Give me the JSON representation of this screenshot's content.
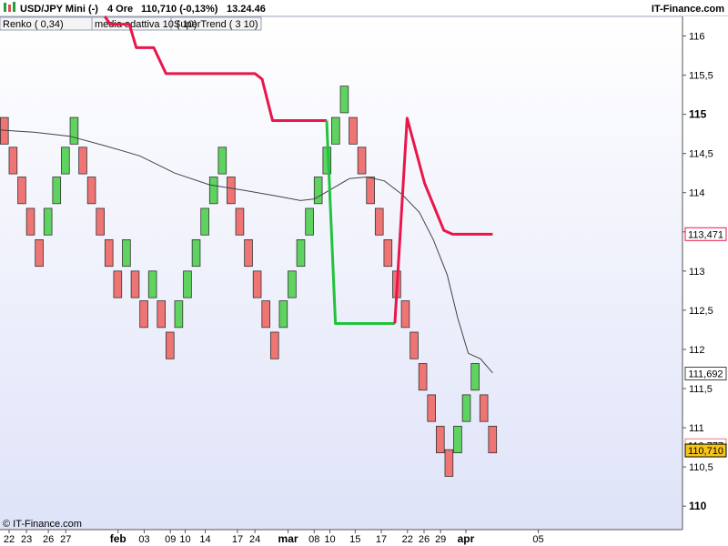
{
  "header": {
    "symbol": "USD/JPY Mini (-)",
    "timeframe": "4 Ore",
    "quote": "110,710 (-0,13%)",
    "time": "13.24.46",
    "brand": "IT-Finance.com"
  },
  "legend": [
    {
      "label": "Renko ( 0,34)",
      "color": "#e06060"
    },
    {
      "label": "media adattiva 10 ( 10)",
      "color": "#333333"
    },
    {
      "label": "SuperTrend ( 3 10)",
      "color": "#e8174a"
    }
  ],
  "copyright": "© IT-Finance.com",
  "colors": {
    "up": "#5fd35f",
    "down": "#ef7474",
    "supertrend_bear": "#e8174a",
    "supertrend_bull": "#22c33c",
    "ama": "#444444",
    "bg_bottom": "#dfe3f8"
  },
  "chart_data": {
    "type": "renko",
    "brick_size": 0.34,
    "ylim": [
      109.7,
      116.25
    ],
    "y_ticks": [
      {
        "value": 116,
        "label": "116",
        "bold": false
      },
      {
        "value": 115.5,
        "label": "115,5",
        "bold": false
      },
      {
        "value": 115,
        "label": "115",
        "bold": true
      },
      {
        "value": 114.5,
        "label": "114,5",
        "bold": false
      },
      {
        "value": 114,
        "label": "114",
        "bold": false
      },
      {
        "value": 113.5,
        "label": "113,5",
        "bold": false
      },
      {
        "value": 113,
        "label": "113",
        "bold": false
      },
      {
        "value": 112.5,
        "label": "112,5",
        "bold": false
      },
      {
        "value": 112,
        "label": "112",
        "bold": false
      },
      {
        "value": 111.5,
        "label": "111,5",
        "bold": false
      },
      {
        "value": 111,
        "label": "111",
        "bold": false
      },
      {
        "value": 110.5,
        "label": "110,5",
        "bold": false
      },
      {
        "value": 110,
        "label": "110",
        "bold": true
      }
    ],
    "x_ticks": [
      {
        "i": 1,
        "label": "22",
        "bold": false
      },
      {
        "i": 3,
        "label": "23",
        "bold": false
      },
      {
        "i": 5.5,
        "label": "26",
        "bold": false
      },
      {
        "i": 7.5,
        "label": "27",
        "bold": false
      },
      {
        "i": 13.5,
        "label": "feb",
        "bold": true
      },
      {
        "i": 16.5,
        "label": "03",
        "bold": false
      },
      {
        "i": 19.5,
        "label": "09",
        "bold": false
      },
      {
        "i": 21.2,
        "label": "10",
        "bold": false
      },
      {
        "i": 23.5,
        "label": "14",
        "bold": false
      },
      {
        "i": 27.2,
        "label": "17",
        "bold": false
      },
      {
        "i": 29.2,
        "label": "24",
        "bold": false
      },
      {
        "i": 33,
        "label": "mar",
        "bold": true
      },
      {
        "i": 36,
        "label": "08",
        "bold": false
      },
      {
        "i": 37.8,
        "label": "10",
        "bold": false
      },
      {
        "i": 40.7,
        "label": "15",
        "bold": false
      },
      {
        "i": 43.7,
        "label": "17",
        "bold": false
      },
      {
        "i": 46.7,
        "label": "22",
        "bold": false
      },
      {
        "i": 48.6,
        "label": "26",
        "bold": false
      },
      {
        "i": 50.5,
        "label": "29",
        "bold": false
      },
      {
        "i": 53.4,
        "label": "apr",
        "bold": true
      },
      {
        "i": 61.7,
        "label": "05",
        "bold": false
      }
    ],
    "bricks": [
      {
        "low": 114.62,
        "dir": "down"
      },
      {
        "low": 114.24,
        "dir": "down"
      },
      {
        "low": 113.86,
        "dir": "down"
      },
      {
        "low": 113.46,
        "dir": "down"
      },
      {
        "low": 113.06,
        "dir": "down"
      },
      {
        "low": 113.46,
        "dir": "up"
      },
      {
        "low": 113.86,
        "dir": "up"
      },
      {
        "low": 114.24,
        "dir": "up"
      },
      {
        "low": 114.62,
        "dir": "up"
      },
      {
        "low": 114.24,
        "dir": "down"
      },
      {
        "low": 113.86,
        "dir": "down"
      },
      {
        "low": 113.46,
        "dir": "down"
      },
      {
        "low": 113.06,
        "dir": "down"
      },
      {
        "low": 112.66,
        "dir": "down"
      },
      {
        "low": 113.06,
        "dir": "up"
      },
      {
        "low": 112.66,
        "dir": "down"
      },
      {
        "low": 112.28,
        "dir": "down"
      },
      {
        "low": 112.66,
        "dir": "up"
      },
      {
        "low": 112.28,
        "dir": "down"
      },
      {
        "low": 111.88,
        "dir": "down"
      },
      {
        "low": 112.28,
        "dir": "up"
      },
      {
        "low": 112.66,
        "dir": "up"
      },
      {
        "low": 113.06,
        "dir": "up"
      },
      {
        "low": 113.46,
        "dir": "up"
      },
      {
        "low": 113.86,
        "dir": "up"
      },
      {
        "low": 114.24,
        "dir": "up"
      },
      {
        "low": 113.86,
        "dir": "down"
      },
      {
        "low": 113.46,
        "dir": "down"
      },
      {
        "low": 113.06,
        "dir": "down"
      },
      {
        "low": 112.66,
        "dir": "down"
      },
      {
        "low": 112.28,
        "dir": "down"
      },
      {
        "low": 111.88,
        "dir": "down"
      },
      {
        "low": 112.28,
        "dir": "up"
      },
      {
        "low": 112.66,
        "dir": "up"
      },
      {
        "low": 113.06,
        "dir": "up"
      },
      {
        "low": 113.46,
        "dir": "up"
      },
      {
        "low": 113.86,
        "dir": "up"
      },
      {
        "low": 114.24,
        "dir": "up"
      },
      {
        "low": 114.62,
        "dir": "up"
      },
      {
        "low": 115.02,
        "dir": "up"
      },
      {
        "low": 114.62,
        "dir": "down"
      },
      {
        "low": 114.24,
        "dir": "down"
      },
      {
        "low": 113.86,
        "dir": "down"
      },
      {
        "low": 113.46,
        "dir": "down"
      },
      {
        "low": 113.06,
        "dir": "down"
      },
      {
        "low": 112.66,
        "dir": "down"
      },
      {
        "low": 112.28,
        "dir": "down"
      },
      {
        "low": 111.88,
        "dir": "down"
      },
      {
        "low": 111.48,
        "dir": "down"
      },
      {
        "low": 111.08,
        "dir": "down"
      },
      {
        "low": 110.68,
        "dir": "down"
      },
      {
        "low": 110.38,
        "dir": "down"
      },
      {
        "low": 110.68,
        "dir": "up"
      },
      {
        "low": 111.08,
        "dir": "up"
      },
      {
        "low": 111.48,
        "dir": "up"
      },
      {
        "low": 111.08,
        "dir": "down"
      },
      {
        "low": 110.68,
        "dir": "down"
      }
    ],
    "supertrend": [
      {
        "segment": "bear",
        "points": [
          [
            6,
            116.25
          ],
          [
            6.3,
            116.15
          ],
          [
            7.4,
            116.15
          ],
          [
            7.8,
            115.85
          ],
          [
            8.8,
            115.85
          ],
          [
            9.5,
            115.52
          ],
          [
            14.6,
            115.52
          ],
          [
            15.0,
            115.45
          ],
          [
            15.6,
            114.92
          ],
          [
            18.7,
            114.92
          ]
        ]
      },
      {
        "segment": "bull",
        "points": [
          [
            18.7,
            114.92
          ],
          [
            19.2,
            112.33
          ],
          [
            22.6,
            112.33
          ]
        ]
      },
      {
        "segment": "bear",
        "points": [
          [
            22.6,
            112.33
          ],
          [
            23.3,
            114.95
          ],
          [
            24.3,
            114.12
          ],
          [
            25.4,
            113.52
          ],
          [
            25.9,
            113.47
          ],
          [
            28.2,
            113.47
          ]
        ]
      }
    ],
    "ama": [
      [
        0,
        114.8
      ],
      [
        2,
        114.77
      ],
      [
        4,
        114.72
      ],
      [
        6,
        114.6
      ],
      [
        8,
        114.47
      ],
      [
        10,
        114.25
      ],
      [
        12,
        114.1
      ],
      [
        14,
        114.03
      ],
      [
        16,
        113.95
      ],
      [
        17.2,
        113.9
      ],
      [
        18,
        113.92
      ],
      [
        19,
        114.05
      ],
      [
        20,
        114.18
      ],
      [
        21,
        114.2
      ],
      [
        22,
        114.15
      ],
      [
        23,
        113.98
      ],
      [
        24,
        113.75
      ],
      [
        24.8,
        113.4
      ],
      [
        25.6,
        112.95
      ],
      [
        26.2,
        112.4
      ],
      [
        26.8,
        111.95
      ],
      [
        27.5,
        111.88
      ],
      [
        28.2,
        111.7
      ]
    ],
    "price_markers": [
      {
        "value": 113.471,
        "label": "113,471",
        "color": "#e8174a",
        "fill": "#ffffff"
      },
      {
        "value": 111.692,
        "label": "111,692",
        "color": "#444444",
        "fill": "#ffffff"
      },
      {
        "value": 110.777,
        "label": "110,777",
        "color": "#ef7474",
        "fill": "#ffffff"
      },
      {
        "value": 110.71,
        "label": "110,710",
        "color": "#000000",
        "fill": "#f5c518"
      }
    ]
  }
}
